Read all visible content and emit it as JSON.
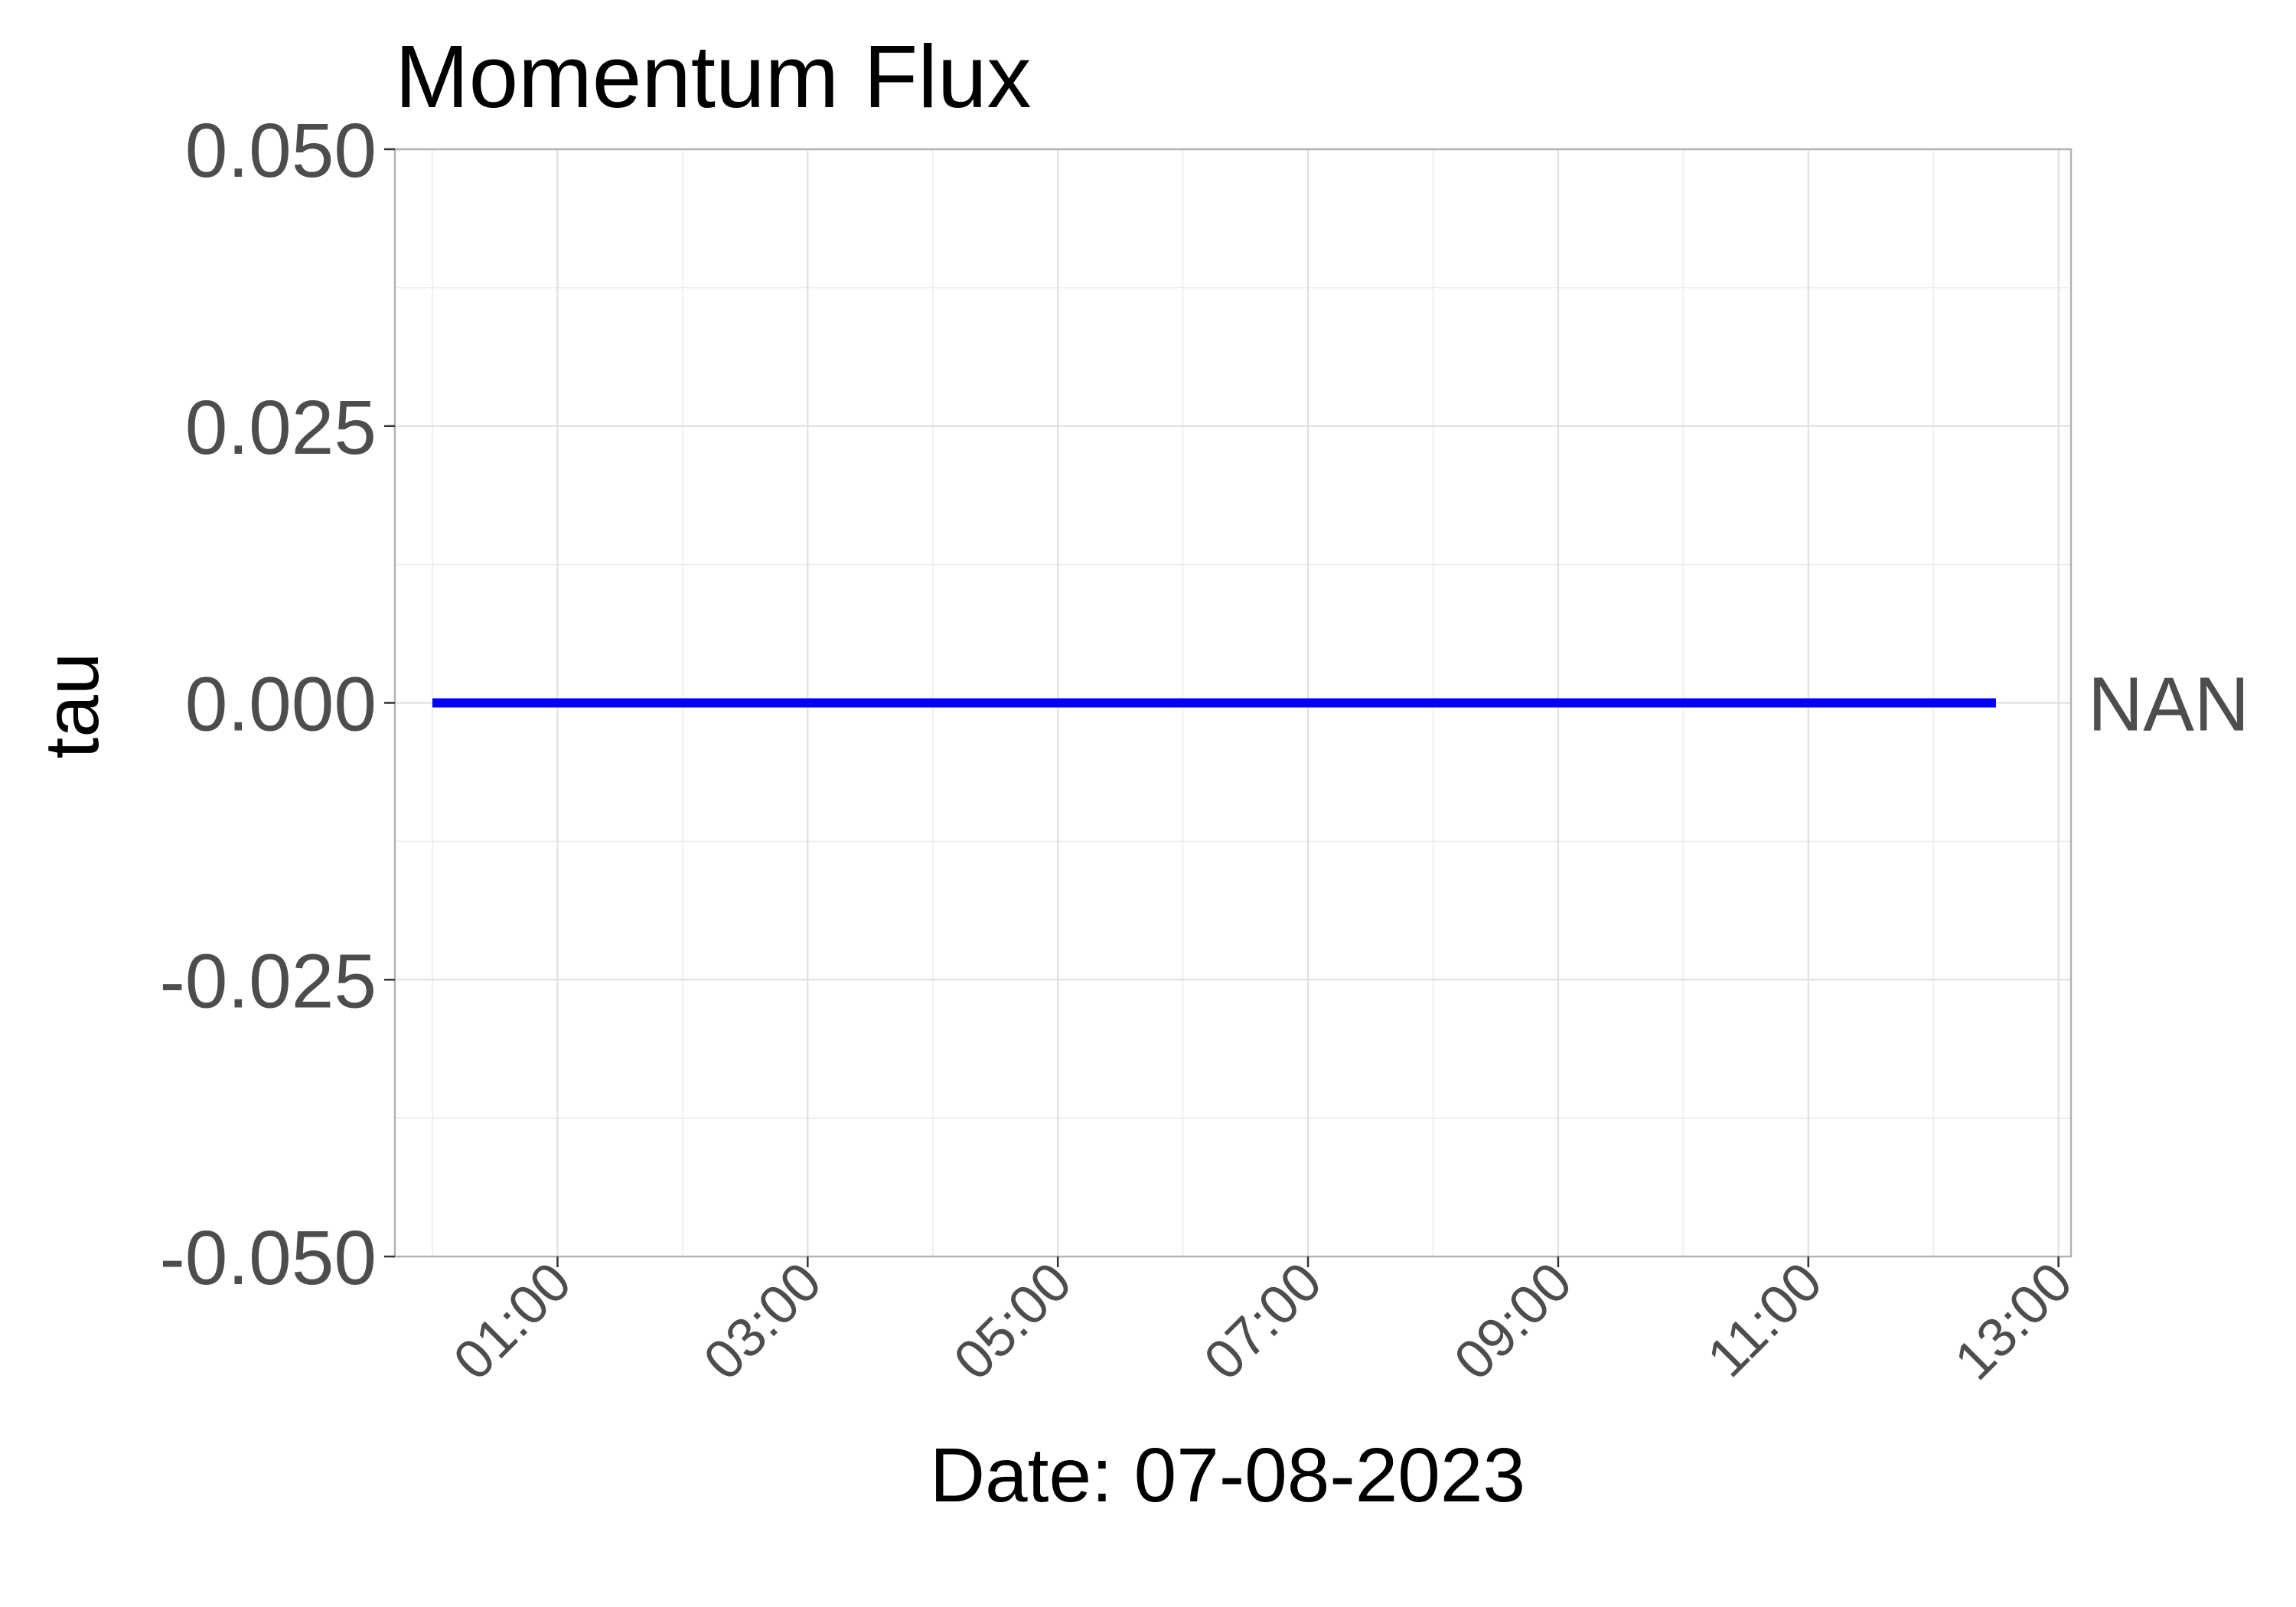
{
  "chart_data": {
    "type": "line",
    "title": "Momentum Flux",
    "xlabel": "Date: 07-08-2023",
    "ylabel": "tau",
    "x_unit": "hours",
    "xlim": [
      -0.3,
      13.1
    ],
    "ylim": [
      -0.05,
      0.05
    ],
    "x_ticks": [
      {
        "value": 1,
        "label": "01:00"
      },
      {
        "value": 3,
        "label": "03:00"
      },
      {
        "value": 5,
        "label": "05:00"
      },
      {
        "value": 7,
        "label": "07:00"
      },
      {
        "value": 9,
        "label": "09:00"
      },
      {
        "value": 11,
        "label": "11:00"
      },
      {
        "value": 13,
        "label": "13:00"
      }
    ],
    "y_ticks": [
      {
        "value": -0.05,
        "label": "-0.050"
      },
      {
        "value": -0.025,
        "label": "-0.025"
      },
      {
        "value": 0.0,
        "label": "0.000"
      },
      {
        "value": 0.025,
        "label": "0.025"
      },
      {
        "value": 0.05,
        "label": "0.050"
      }
    ],
    "grid": true,
    "series": [
      {
        "color": "#0000ff",
        "x": [
          0,
          2,
          4,
          6,
          8,
          10,
          12,
          12.5
        ],
        "y": [
          0,
          0,
          0,
          0,
          0,
          0,
          0,
          0
        ],
        "end_label": "NAN"
      }
    ]
  }
}
